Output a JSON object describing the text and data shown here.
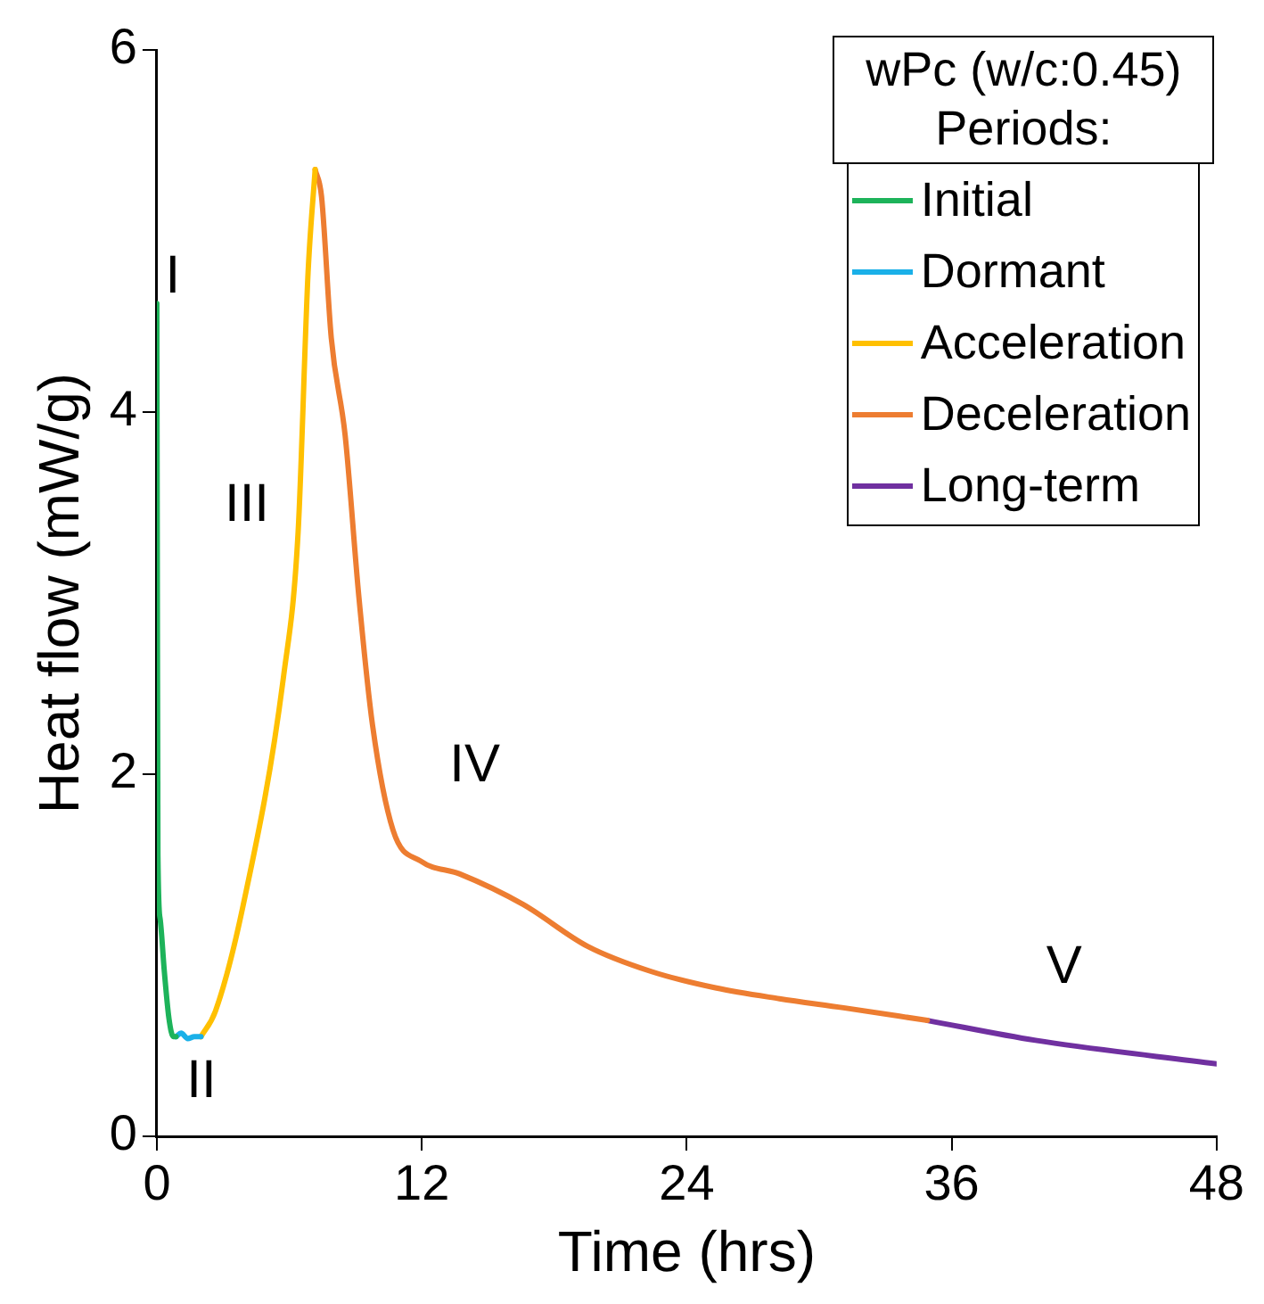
{
  "chart_data": {
    "type": "line",
    "xlabel": "Time (hrs)",
    "ylabel": "Heat flow (mW/g)",
    "legend_title": "wPc (w/c:0.45)\nPeriods:",
    "legend": "top right",
    "xlim": [
      0,
      48
    ],
    "xticks": [
      0,
      12,
      24,
      36,
      48
    ],
    "ylim": [
      0,
      6
    ],
    "yticks": [
      0,
      2,
      4,
      6
    ],
    "grid": false,
    "marker": "none",
    "line_style": "solid",
    "series": [
      {
        "name": "Initial",
        "color": "#1db35a",
        "x": [
          0,
          0.02,
          0.05,
          0.15,
          0.34,
          0.55,
          0.75,
          0.87
        ],
        "values": [
          4.6,
          3.2,
          1.55,
          1.2,
          0.91,
          0.65,
          0.55,
          0.55
        ]
      },
      {
        "name": "Dormant",
        "color": "#1ab0e8",
        "x": [
          0.87,
          1.1,
          1.4,
          1.7,
          2.0
        ],
        "values": [
          0.55,
          0.57,
          0.54,
          0.55,
          0.55
        ]
      },
      {
        "name": "Acceleration",
        "color": "#ffc000",
        "x": [
          2.0,
          2.65,
          3.9,
          5.75,
          6.4,
          6.85,
          7.17
        ],
        "values": [
          0.55,
          0.69,
          1.27,
          2.55,
          3.34,
          4.77,
          5.34
        ]
      },
      {
        "name": "Deceleration",
        "color": "#ed7d31",
        "x": [
          7.17,
          7.46,
          7.9,
          8.53,
          9.15,
          9.77,
          10.7,
          11.95,
          13.7,
          16.6,
          19.5,
          22.4,
          25.3,
          28.2,
          31.1,
          34.9
        ],
        "values": [
          5.34,
          5.19,
          4.41,
          3.87,
          2.98,
          2.27,
          1.69,
          1.52,
          1.45,
          1.28,
          1.05,
          0.91,
          0.82,
          0.76,
          0.71,
          0.64
        ]
      },
      {
        "name": "Long-term",
        "color": "#7030a0",
        "x": [
          34.9,
          39.8,
          48
        ],
        "values": [
          0.64,
          0.53,
          0.4
        ]
      }
    ],
    "annotations": [
      "I",
      "II",
      "III",
      "IV",
      "V"
    ]
  }
}
